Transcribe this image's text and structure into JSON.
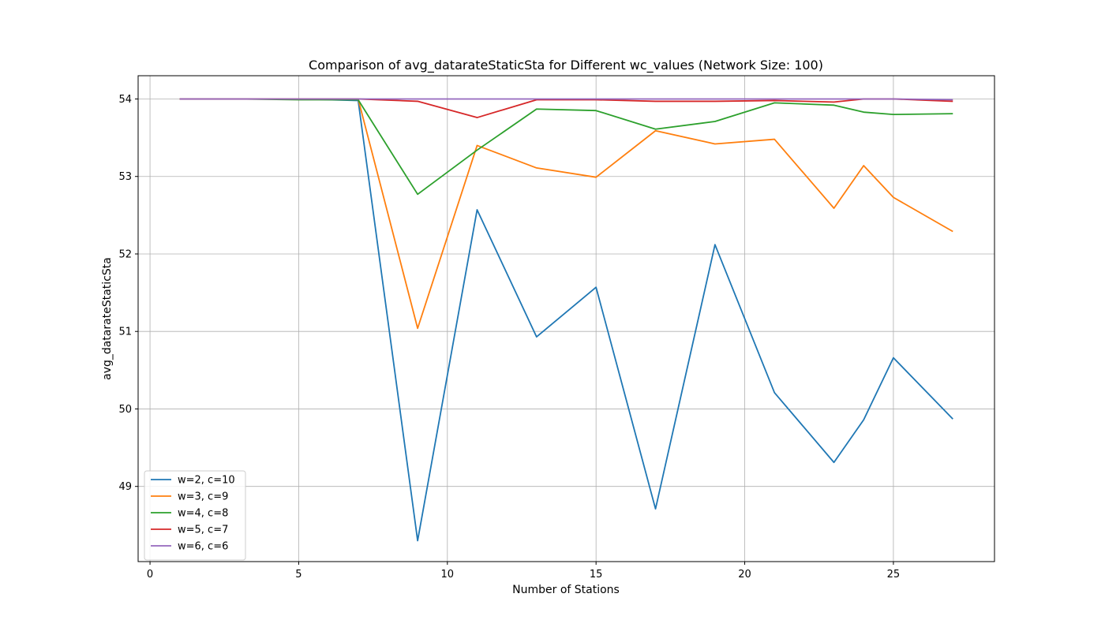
{
  "chart_data": {
    "type": "line",
    "title": "Comparison of avg_datarateStaticSta for Different wc_values (Network Size: 100)",
    "xlabel": "Number of Stations",
    "ylabel": "avg_datarateStaticSta",
    "xlim": [
      -0.4,
      28.4
    ],
    "ylim": [
      48.03,
      54.3
    ],
    "xticks": [
      0,
      5,
      10,
      15,
      20,
      25
    ],
    "yticks": [
      49,
      50,
      51,
      52,
      53,
      54
    ],
    "grid": true,
    "legend_position": "lower-left",
    "series": [
      {
        "name": "w=2, c=10",
        "color": "#1f77b4",
        "x": [
          1,
          3,
          5,
          7,
          9,
          11,
          13,
          15,
          17,
          19,
          21,
          23,
          24,
          25,
          27
        ],
        "y": [
          54.0,
          54.0,
          54.0,
          53.98,
          48.3,
          52.57,
          50.93,
          51.57,
          48.71,
          52.12,
          50.21,
          49.31,
          49.86,
          50.66,
          49.87
        ]
      },
      {
        "name": "w=3, c=9",
        "color": "#ff7f0e",
        "x": [
          1,
          3,
          5,
          7,
          9,
          11,
          13,
          15,
          17,
          19,
          21,
          23,
          24,
          25,
          27
        ],
        "y": [
          54.0,
          54.0,
          54.0,
          54.0,
          51.04,
          53.4,
          53.11,
          52.99,
          53.59,
          53.42,
          53.48,
          52.59,
          53.14,
          52.73,
          52.29
        ]
      },
      {
        "name": "w=4, c=8",
        "color": "#2ca02c",
        "x": [
          1,
          3,
          5,
          7,
          9,
          11,
          13,
          15,
          17,
          19,
          21,
          23,
          24,
          25,
          27
        ],
        "y": [
          54.0,
          54.0,
          53.99,
          53.99,
          52.77,
          53.34,
          53.87,
          53.85,
          53.61,
          53.71,
          53.95,
          53.92,
          53.83,
          53.8,
          53.81
        ]
      },
      {
        "name": "w=5, c=7",
        "color": "#d62728",
        "x": [
          1,
          3,
          5,
          7,
          9,
          11,
          13,
          15,
          17,
          19,
          21,
          23,
          24,
          25,
          27
        ],
        "y": [
          54.0,
          54.0,
          54.0,
          54.0,
          53.97,
          53.76,
          53.99,
          53.99,
          53.97,
          53.97,
          53.98,
          53.96,
          54.0,
          54.0,
          53.97
        ]
      },
      {
        "name": "w=6, c=6",
        "color": "#9467bd",
        "x": [
          1,
          3,
          5,
          7,
          9,
          11,
          13,
          15,
          17,
          19,
          21,
          23,
          24,
          25,
          27
        ],
        "y": [
          54.0,
          54.0,
          54.0,
          54.0,
          54.0,
          54.0,
          54.0,
          54.0,
          54.0,
          54.0,
          54.0,
          54.0,
          54.0,
          54.0,
          53.99
        ]
      }
    ]
  }
}
